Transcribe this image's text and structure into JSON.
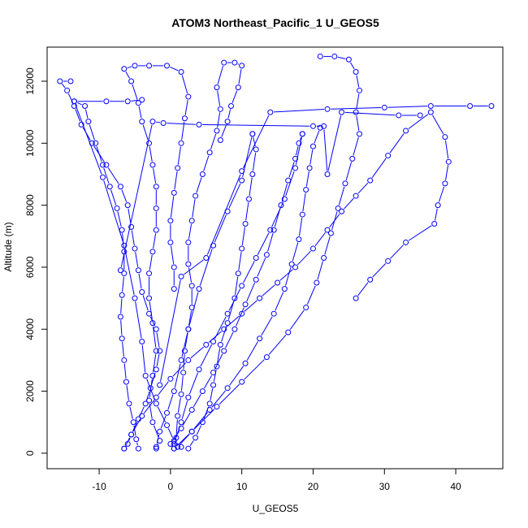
{
  "chart_data": {
    "type": "line",
    "title": "ATOM3 Northeast_Pacific_1 U_GEOS5",
    "xlabel": "U_GEOS5",
    "ylabel": "Altitude (m)",
    "xlim": [
      -17.3,
      46.6
    ],
    "ylim": [
      -500,
      13100
    ],
    "xticks": [
      -10,
      0,
      10,
      20,
      30,
      40
    ],
    "yticks": [
      0,
      2000,
      4000,
      6000,
      8000,
      10000,
      12000
    ],
    "grid": false,
    "legend": "none",
    "series_color": "#0000ff",
    "series": [
      {
        "values": [
          [
            -6.5,
            150
          ],
          [
            -6.0,
            300
          ],
          [
            -5.5,
            600
          ],
          [
            -4.5,
            1100
          ],
          [
            -3.5,
            1600
          ],
          [
            -2.8,
            2100
          ],
          [
            -2.0,
            2700
          ],
          [
            -1.5,
            3300
          ],
          [
            -2.0,
            4000
          ],
          [
            -3.0,
            4500
          ],
          [
            -4.0,
            5200
          ],
          [
            -4.5,
            5900
          ],
          [
            -5.0,
            6600
          ],
          [
            -5.5,
            7300
          ],
          [
            -6.0,
            8000
          ],
          [
            -7.0,
            8600
          ],
          [
            -9.0,
            9300
          ],
          [
            -11.0,
            10000
          ],
          [
            -12.5,
            10600
          ],
          [
            -13.5,
            11200
          ],
          [
            -14.5,
            11700
          ],
          [
            -15.5,
            12000
          ],
          [
            -14.0,
            12000
          ]
        ]
      },
      {
        "values": [
          [
            -4.5,
            150
          ],
          [
            -4.8,
            450
          ],
          [
            -5.2,
            1000
          ],
          [
            -5.8,
            1600
          ],
          [
            -6.2,
            2300
          ],
          [
            -6.5,
            3000
          ],
          [
            -6.8,
            3700
          ],
          [
            -7.0,
            4400
          ],
          [
            -6.8,
            5100
          ],
          [
            -6.5,
            5800
          ],
          [
            -6.5,
            6500
          ],
          [
            -6.8,
            7200
          ],
          [
            -7.5,
            7900
          ],
          [
            -8.5,
            8600
          ],
          [
            -9.5,
            9300
          ],
          [
            -10.5,
            10000
          ],
          [
            -11.5,
            10700
          ],
          [
            -12.0,
            11200
          ],
          [
            -13.5,
            11350
          ],
          [
            -9.0,
            11350
          ],
          [
            -6.0,
            11350
          ],
          [
            -4.0,
            11400
          ]
        ]
      },
      {
        "values": [
          [
            -2.0,
            150
          ],
          [
            -1.5,
            400
          ],
          [
            -2.5,
            1000
          ],
          [
            -3.0,
            1700
          ],
          [
            -2.5,
            2500
          ],
          [
            -2.0,
            3300
          ],
          [
            -2.5,
            4200
          ],
          [
            -3.0,
            5000
          ],
          [
            -3.0,
            5800
          ],
          [
            -2.5,
            6500
          ],
          [
            -2.0,
            7200
          ],
          [
            -2.0,
            7900
          ],
          [
            -2.0,
            8600
          ],
          [
            -2.5,
            9300
          ],
          [
            -3.0,
            10000
          ],
          [
            -4.0,
            10700
          ],
          [
            -4.5,
            11300
          ],
          [
            -5.5,
            12000
          ],
          [
            -6.5,
            12400
          ],
          [
            -5.0,
            12500
          ],
          [
            -3.0,
            12500
          ],
          [
            -0.5,
            12500
          ],
          [
            1.5,
            12300
          ],
          [
            2.5,
            11500
          ],
          [
            2.0,
            10800
          ],
          [
            1.5,
            10000
          ],
          [
            1.0,
            9200
          ],
          [
            0.5,
            8400
          ],
          [
            0.0,
            7500
          ],
          [
            0.0,
            6800
          ],
          [
            0.5,
            6000
          ],
          [
            0.5,
            5300
          ]
        ]
      },
      {
        "values": [
          [
            0.5,
            150
          ],
          [
            0.8,
            500
          ],
          [
            1.0,
            1200
          ],
          [
            1.5,
            1900
          ],
          [
            1.8,
            2600
          ],
          [
            2.0,
            3300
          ],
          [
            2.5,
            4000
          ],
          [
            3.0,
            4700
          ],
          [
            3.0,
            5400
          ],
          [
            2.5,
            6100
          ],
          [
            2.5,
            6800
          ],
          [
            3.0,
            7500
          ],
          [
            3.5,
            8300
          ],
          [
            4.5,
            9000
          ],
          [
            5.5,
            9700
          ],
          [
            6.5,
            10400
          ],
          [
            7.0,
            11100
          ],
          [
            6.5,
            11800
          ],
          [
            7.5,
            12600
          ],
          [
            9.0,
            12600
          ],
          [
            10.0,
            12500
          ],
          [
            9.5,
            11800
          ],
          [
            8.5,
            11200
          ],
          [
            8.0,
            10700
          ],
          [
            7.0,
            10100
          ]
        ]
      },
      {
        "values": [
          [
            2.5,
            150
          ],
          [
            3.5,
            500
          ],
          [
            4.5,
            1000
          ],
          [
            5.5,
            1600
          ],
          [
            6.0,
            2200
          ],
          [
            6.5,
            2800
          ],
          [
            7.0,
            3500
          ],
          [
            8.0,
            4200
          ],
          [
            9.0,
            5000
          ],
          [
            9.5,
            5800
          ],
          [
            10.0,
            6600
          ],
          [
            10.5,
            7400
          ],
          [
            11.0,
            8200
          ],
          [
            11.5,
            9000
          ],
          [
            12.0,
            9800
          ],
          [
            11.5,
            10300
          ]
        ]
      },
      {
        "values": [
          [
            0.0,
            300
          ],
          [
            1.5,
            800
          ],
          [
            3.0,
            1400
          ],
          [
            4.5,
            2000
          ],
          [
            6.0,
            2600
          ],
          [
            7.5,
            3300
          ],
          [
            9.0,
            4000
          ],
          [
            10.5,
            4800
          ],
          [
            12.0,
            5600
          ],
          [
            13.5,
            6400
          ],
          [
            14.5,
            7200
          ],
          [
            15.5,
            8000
          ],
          [
            16.5,
            8800
          ],
          [
            17.5,
            9500
          ],
          [
            18.0,
            10000
          ],
          [
            18.5,
            10300
          ]
        ]
      },
      {
        "values": [
          [
            1.0,
            200
          ],
          [
            3.0,
            700
          ],
          [
            5.5,
            1400
          ],
          [
            8.0,
            2100
          ],
          [
            10.5,
            2900
          ],
          [
            12.5,
            3700
          ],
          [
            14.5,
            4500
          ],
          [
            16.0,
            5300
          ],
          [
            17.0,
            6100
          ],
          [
            18.0,
            6900
          ],
          [
            18.5,
            7700
          ],
          [
            19.0,
            8500
          ],
          [
            19.5,
            9200
          ],
          [
            20.0,
            9900
          ],
          [
            21.0,
            10500
          ]
        ]
      },
      {
        "values": [
          [
            0.5,
            150
          ],
          [
            3.0,
            700
          ],
          [
            6.5,
            1500
          ],
          [
            10.0,
            2300
          ],
          [
            13.5,
            3100
          ],
          [
            16.5,
            3900
          ],
          [
            19.0,
            4700
          ],
          [
            20.5,
            5500
          ],
          [
            21.5,
            6300
          ],
          [
            22.5,
            7100
          ],
          [
            23.5,
            7900
          ],
          [
            24.5,
            8700
          ],
          [
            25.5,
            9500
          ],
          [
            26.5,
            10300
          ],
          [
            26.0,
            11000
          ],
          [
            26.5,
            11700
          ],
          [
            26.0,
            12300
          ],
          [
            25.0,
            12700
          ],
          [
            23.0,
            12800
          ],
          [
            21.0,
            12800
          ]
        ]
      },
      {
        "values": [
          [
            -6.5,
            150
          ],
          [
            -5.5,
            600
          ],
          [
            -4.0,
            1200
          ],
          [
            -2.0,
            1800
          ],
          [
            0.0,
            2400
          ],
          [
            2.5,
            3000
          ],
          [
            5.0,
            3500
          ],
          [
            7.5,
            4000
          ],
          [
            10.0,
            4500
          ],
          [
            12.5,
            5000
          ],
          [
            15.0,
            5500
          ],
          [
            17.5,
            6000
          ],
          [
            20.0,
            6600
          ],
          [
            22.0,
            7200
          ],
          [
            24.0,
            7800
          ],
          [
            26.0,
            8300
          ],
          [
            28.0,
            8800
          ],
          [
            30.5,
            9600
          ],
          [
            33.0,
            10400
          ],
          [
            36.5,
            11000
          ],
          [
            38.5,
            10200
          ],
          [
            39.0,
            9400
          ],
          [
            38.5,
            8700
          ],
          [
            37.5,
            8000
          ],
          [
            37.0,
            7400
          ],
          [
            33.0,
            6800
          ],
          [
            30.5,
            6200
          ],
          [
            28.0,
            5600
          ],
          [
            26.0,
            5000
          ]
        ]
      },
      {
        "values": [
          [
            -1.5,
            2200
          ],
          [
            1.5,
            5700
          ],
          [
            5.0,
            6300
          ],
          [
            10.0,
            9100
          ],
          [
            14.0,
            11000
          ],
          [
            22.0,
            11100
          ],
          [
            30.0,
            11150
          ],
          [
            36.5,
            11200
          ],
          [
            42.0,
            11200
          ],
          [
            45.0,
            11200
          ]
        ]
      },
      {
        "values": [
          [
            -7.0,
            5900
          ],
          [
            -2.5,
            10700
          ],
          [
            -1.0,
            10650
          ],
          [
            4.0,
            10600
          ],
          [
            20.0,
            10550
          ],
          [
            21.5,
            10550
          ],
          [
            22.0,
            9000
          ],
          [
            24.0,
            11000
          ],
          [
            32.0,
            10900
          ],
          [
            35.0,
            10900
          ]
        ]
      },
      {
        "values": [
          [
            -13.5,
            11350
          ],
          [
            -9.5,
            8900
          ],
          [
            -6.5,
            6700
          ],
          [
            -5.0,
            5000
          ],
          [
            -4.0,
            3600
          ],
          [
            -3.5,
            2500
          ],
          [
            -2.0,
            1600
          ],
          [
            -0.5,
            900
          ],
          [
            0.5,
            400
          ],
          [
            1.5,
            200
          ]
        ]
      },
      {
        "values": [
          [
            11.5,
            10300
          ],
          [
            10.0,
            8800
          ],
          [
            8.0,
            7800
          ],
          [
            6.0,
            6700
          ],
          [
            4.0,
            5300
          ],
          [
            2.5,
            4000
          ],
          [
            1.5,
            3000
          ],
          [
            0.5,
            2000
          ],
          [
            -0.5,
            1300
          ],
          [
            -1.5,
            700
          ],
          [
            -2.0,
            200
          ]
        ]
      },
      {
        "values": [
          [
            18.5,
            10300
          ],
          [
            17.5,
            9200
          ],
          [
            16.0,
            8200
          ],
          [
            14.0,
            7200
          ],
          [
            12.0,
            6300
          ],
          [
            10.0,
            5400
          ],
          [
            8.0,
            4500
          ],
          [
            6.0,
            3600
          ],
          [
            4.0,
            2700
          ],
          [
            2.5,
            1800
          ],
          [
            1.5,
            1000
          ],
          [
            0.5,
            300
          ]
        ]
      }
    ]
  }
}
